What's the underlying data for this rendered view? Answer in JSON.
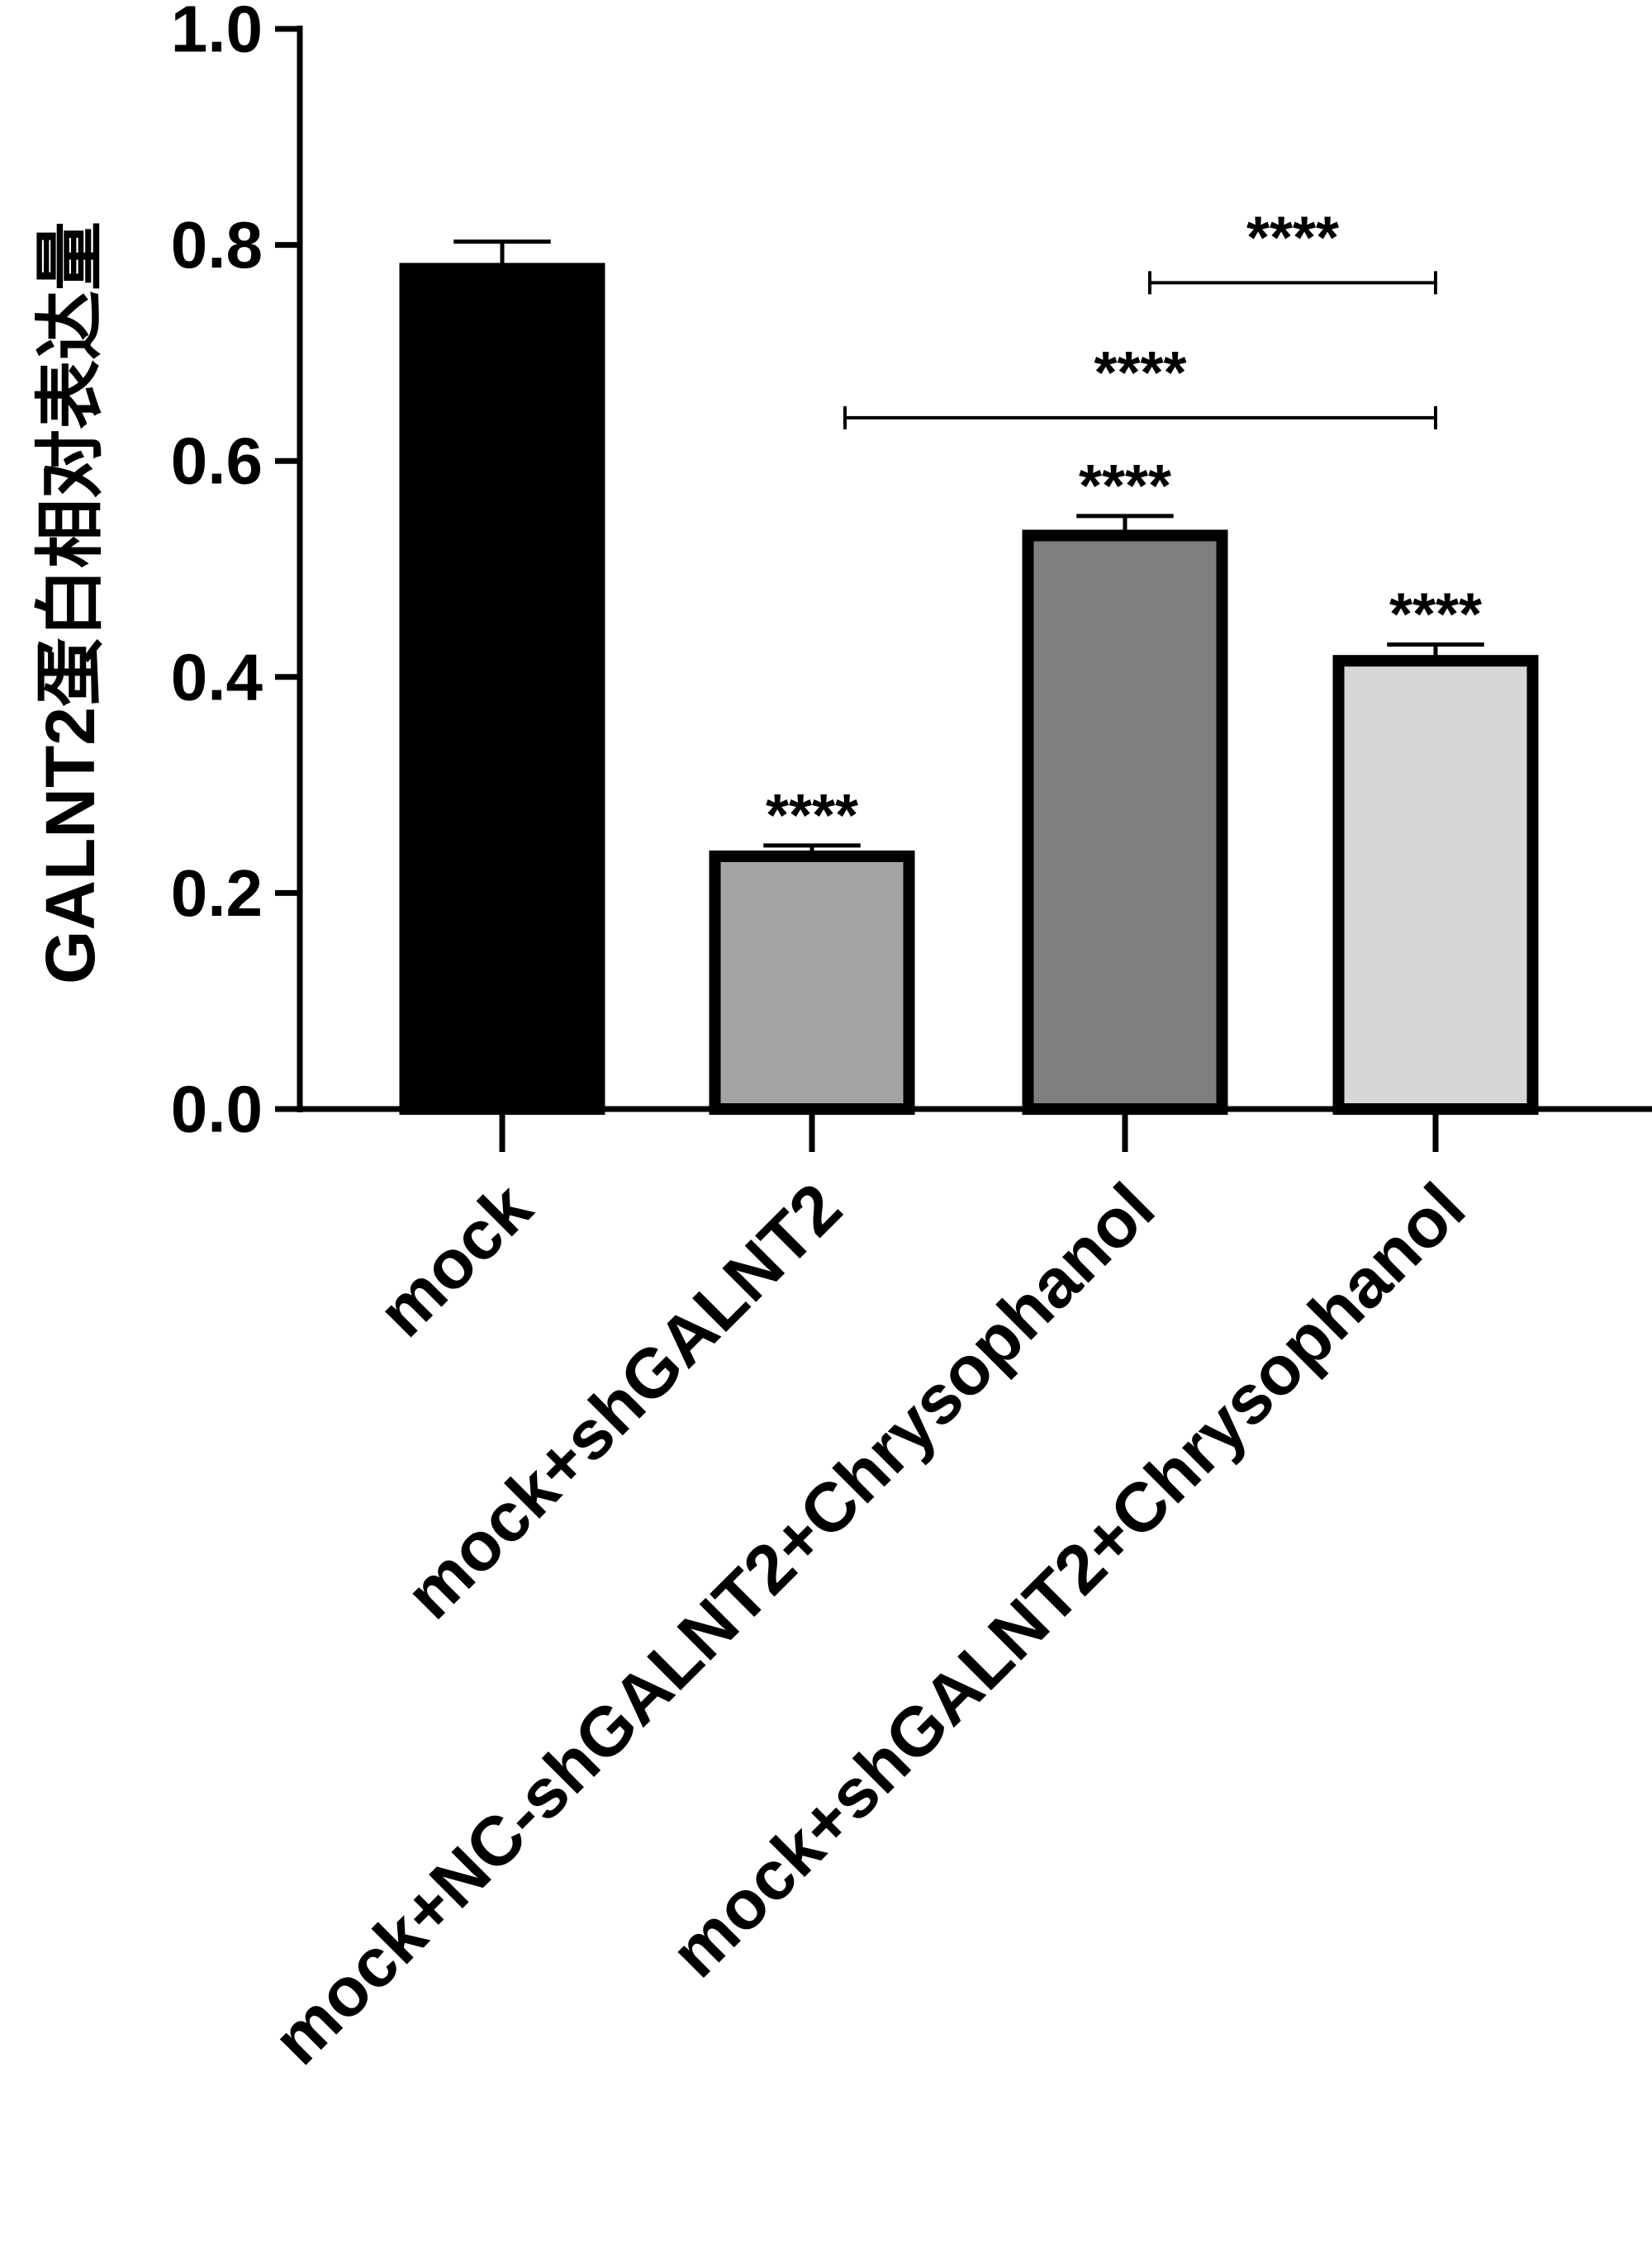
{
  "chart_data": {
    "type": "bar",
    "ylabel": "GALNT2蛋白相对表达量",
    "ylim": [
      0,
      1.0
    ],
    "yticks": [
      "0.0",
      "0.2",
      "0.4",
      "0.6",
      "0.8",
      "1.0"
    ],
    "categories": [
      "mock",
      "mock+shGALNT2",
      "mock+NC-shGALNT2+Chrysophanol",
      "mock+shGALNT2+Chrysophanol"
    ],
    "values": [
      0.778,
      0.234,
      0.531,
      0.415
    ],
    "errors": [
      0.025,
      0.01,
      0.018,
      0.015
    ],
    "colors": [
      "#000000",
      "#a3a3a5",
      "#7f7f7f",
      "#d6d6d6"
    ],
    "bar_significance": [
      "",
      "****",
      "****",
      "****"
    ],
    "comparisons": [
      {
        "from": 1,
        "to": 3,
        "label": "****",
        "y": 0.64
      },
      {
        "from": 2,
        "to": 3,
        "label": "****",
        "y": 0.765
      }
    ]
  }
}
